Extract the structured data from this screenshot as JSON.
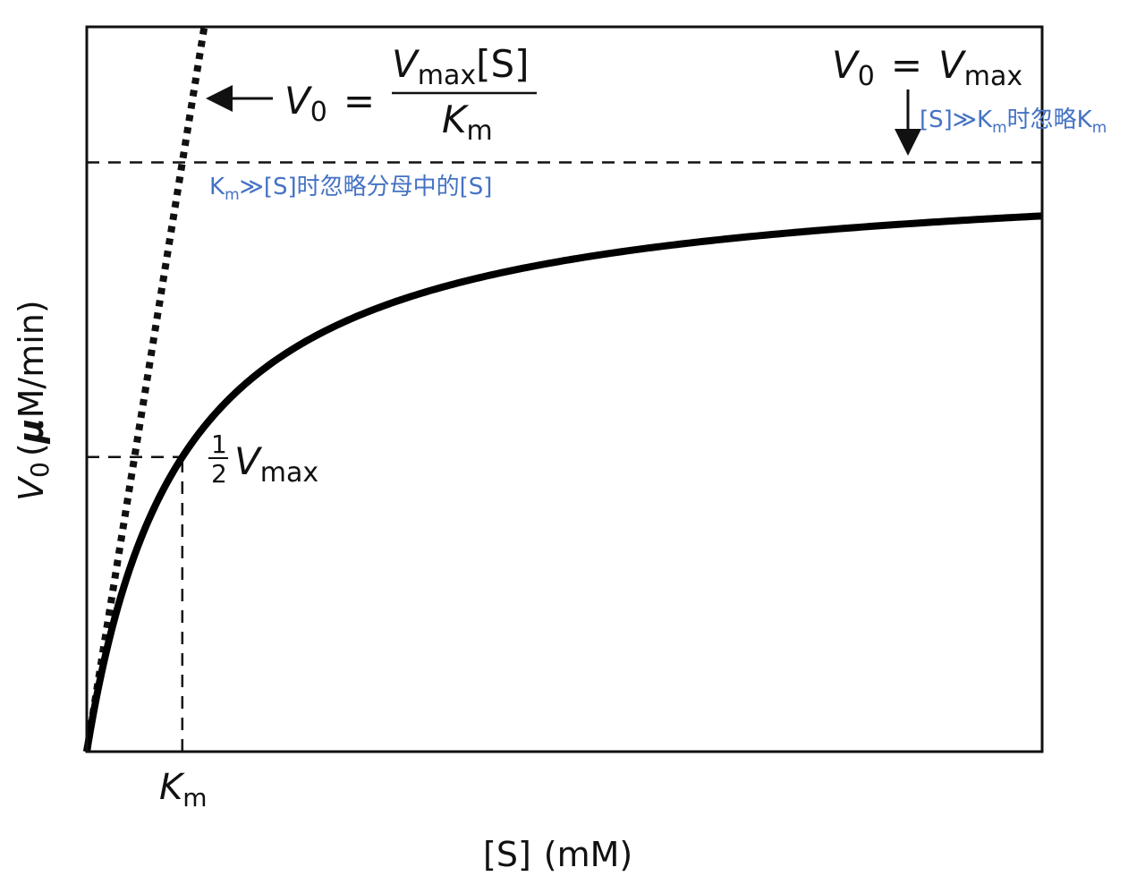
{
  "chart_data": {
    "type": "line",
    "title": "",
    "xlabel": "[S] (mM)",
    "ylabel": "V0 (μM/min)",
    "xlim": [
      0,
      10
    ],
    "ylim": [
      0,
      1.23
    ],
    "vmax": 1.0,
    "km": 1.0,
    "series": [
      {
        "name": "Michaelis-Menten curve",
        "style": "solid",
        "equation": "V0 = Vmax[S]/(Km+[S])"
      },
      {
        "name": "Initial linear approximation",
        "style": "dotted",
        "equation": "V0 = Vmax[S]/Km",
        "x": [
          0,
          1.23
        ],
        "y": [
          0,
          1.23
        ]
      }
    ],
    "reference_lines": [
      {
        "name": "Vmax",
        "orientation": "horizontal",
        "y": 1.0
      },
      {
        "name": "half-Vmax",
        "orientation": "horizontal",
        "y": 0.5,
        "x_range": [
          0,
          1.0
        ]
      },
      {
        "name": "Km",
        "orientation": "vertical",
        "x": 1.0,
        "y_range": [
          0,
          0.5
        ]
      }
    ],
    "x_tick_label": {
      "italic": "K",
      "sub": "m"
    },
    "y_axis_label": {
      "italic": "V",
      "sub": "0",
      "unit_open": "(",
      "mu": "μ",
      "unit_rest": "M/min)"
    },
    "x_axis_label": {
      "text": "[S]",
      "unit": "(mM)"
    },
    "annotations": {
      "linear_formula": {
        "lhs_v": "V",
        "lhs_sub": "0",
        "eq": "=",
        "num_v": "V",
        "num_sub": "max",
        "num_tail": "[S]",
        "den_k": "K",
        "den_sub": "m"
      },
      "vmax_formula": {
        "lhs_v": "V",
        "lhs_sub": "0",
        "eq": "=",
        "rhs_v": "V",
        "rhs_sub": "max"
      },
      "half_vmax": {
        "num": "1",
        "den": "2",
        "v": "V",
        "sub": "max"
      },
      "note_high_s": {
        "pre": "[S]≫K",
        "sub": "m",
        "post": "时忽略K",
        "tail_sub": "m"
      },
      "note_low_s": {
        "pre": "K",
        "sub": "m",
        "post": "≫[S]时忽略分母中的[S]"
      }
    }
  }
}
